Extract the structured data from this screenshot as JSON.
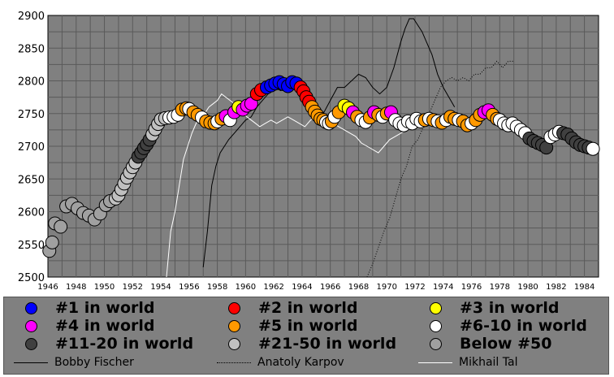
{
  "chart_data": {
    "type": "scatter",
    "title": "",
    "xlabel": "",
    "ylabel": "",
    "xlim": [
      1946,
      1985
    ],
    "ylim": [
      2500,
      2900
    ],
    "grid": true,
    "x_ticks": [
      "1946",
      "1948",
      "1950",
      "1952",
      "1954",
      "1956",
      "1958",
      "1960",
      "1962",
      "1964",
      "1966",
      "1968",
      "1970",
      "1972",
      "1974",
      "1976",
      "1978",
      "1980",
      "1982",
      "1984"
    ],
    "y_ticks": [
      "2500",
      "2550",
      "2600",
      "2650",
      "2700",
      "2750",
      "2800",
      "2850",
      "2900"
    ],
    "rank_categories": [
      {
        "label": "#1 in world",
        "color": "#0000ff"
      },
      {
        "label": "#2 in world",
        "color": "#ff0000"
      },
      {
        "label": "#3 in world",
        "color": "#ffff00"
      },
      {
        "label": "#4 in world",
        "color": "#ff00ff"
      },
      {
        "label": "#5 in world",
        "color": "#ff9900"
      },
      {
        "label": "#6-10 in world",
        "color": "#ffffff"
      },
      {
        "label": "#11-20 in world",
        "color": "#404040"
      },
      {
        "label": "#21-50 in world",
        "color": "#c0c0c0"
      },
      {
        "label": "Below #50",
        "color": "#a0a0a0"
      }
    ],
    "series": [
      {
        "name": "Bobby Fischer",
        "style": "solid",
        "color": "#000000",
        "x": [
          1957.0,
          1957.3,
          1957.6,
          1957.9,
          1958.2,
          1958.5,
          1958.8,
          1959.2,
          1959.6,
          1960.0,
          1960.4,
          1960.8,
          1961.2,
          1961.6,
          1962.0,
          1962.5,
          1963.0,
          1963.5,
          1964.0,
          1964.5,
          1965.0,
          1965.5,
          1966.0,
          1966.5,
          1967.0,
          1967.5,
          1968.0,
          1968.5,
          1969.0,
          1969.5,
          1970.0,
          1970.5,
          1971.0,
          1971.3,
          1971.6,
          1971.9,
          1972.2,
          1972.5,
          1972.8,
          1973.2,
          1973.6,
          1974.0,
          1974.4,
          1974.8
        ],
        "y": [
          2515,
          2570,
          2640,
          2670,
          2690,
          2700,
          2710,
          2720,
          2730,
          2740,
          2745,
          2760,
          2770,
          2780,
          2790,
          2785,
          2790,
          2795,
          2790,
          2770,
          2760,
          2750,
          2770,
          2790,
          2790,
          2800,
          2810,
          2805,
          2790,
          2780,
          2790,
          2820,
          2860,
          2880,
          2895,
          2895,
          2885,
          2875,
          2860,
          2840,
          2810,
          2790,
          2775,
          2760
        ]
      },
      {
        "name": "Anatoly Karpov",
        "style": "dotted",
        "color": "#000000",
        "x": [
          1968.6,
          1969.0,
          1969.4,
          1969.8,
          1970.2,
          1970.6,
          1971.0,
          1971.4,
          1971.8,
          1972.2,
          1972.6,
          1973.0,
          1973.4,
          1973.8,
          1974.2,
          1974.6,
          1975.0,
          1975.4,
          1975.8,
          1976.2,
          1976.6,
          1977.0,
          1977.4,
          1977.8,
          1978.2,
          1978.6,
          1979.0
        ],
        "y": [
          2500,
          2520,
          2545,
          2570,
          2590,
          2620,
          2650,
          2670,
          2700,
          2710,
          2730,
          2750,
          2770,
          2790,
          2800,
          2805,
          2800,
          2805,
          2800,
          2810,
          2810,
          2820,
          2820,
          2830,
          2820,
          2830,
          2830
        ]
      },
      {
        "name": "Mikhail Tal",
        "style": "solid",
        "color": "#ffffff",
        "x": [
          1954.4,
          1954.7,
          1955.0,
          1955.3,
          1955.6,
          1955.9,
          1956.2,
          1956.5,
          1956.8,
          1957.1,
          1957.4,
          1957.7,
          1958.0,
          1958.3,
          1958.6,
          1958.9,
          1959.2,
          1959.5,
          1959.8,
          1960.1,
          1960.4,
          1960.7,
          1961.0,
          1961.4,
          1961.8,
          1962.2,
          1962.6,
          1963.0,
          1963.4,
          1963.8,
          1964.2,
          1964.6,
          1965.0,
          1965.4,
          1965.8,
          1966.2,
          1966.6,
          1967.0,
          1967.4,
          1967.8,
          1968.2,
          1968.6,
          1969.0,
          1969.4,
          1969.8,
          1970.2,
          1970.6,
          1971.0,
          1971.4
        ],
        "y": [
          2500,
          2570,
          2600,
          2640,
          2680,
          2700,
          2720,
          2735,
          2745,
          2750,
          2760,
          2765,
          2770,
          2780,
          2775,
          2770,
          2765,
          2760,
          2750,
          2745,
          2740,
          2735,
          2730,
          2735,
          2740,
          2735,
          2740,
          2745,
          2740,
          2735,
          2730,
          2740,
          2745,
          2750,
          2740,
          2735,
          2730,
          2725,
          2720,
          2715,
          2705,
          2700,
          2695,
          2690,
          2700,
          2710,
          2715,
          2720,
          2725
        ]
      }
    ],
    "rating_points": [
      [
        1946.1,
        2540,
        "Below #50"
      ],
      [
        1946.3,
        2553,
        "Below #50"
      ],
      [
        1946.5,
        2582,
        "Below #50"
      ],
      [
        1946.9,
        2577,
        "Below #50"
      ],
      [
        1947.3,
        2608,
        "Below #50"
      ],
      [
        1947.7,
        2612,
        "Below #50"
      ],
      [
        1948.1,
        2605,
        "Below #50"
      ],
      [
        1948.5,
        2598,
        "Below #50"
      ],
      [
        1948.9,
        2594,
        "Below #50"
      ],
      [
        1949.3,
        2588,
        "Below #50"
      ],
      [
        1949.7,
        2597,
        "Below #50"
      ],
      [
        1950.1,
        2610,
        "Below #50"
      ],
      [
        1950.4,
        2616,
        "Below #50"
      ],
      [
        1950.8,
        2620,
        "#21-50 in world"
      ],
      [
        1951.0,
        2625,
        "#21-50 in world"
      ],
      [
        1951.2,
        2634,
        "#21-50 in world"
      ],
      [
        1951.4,
        2643,
        "#21-50 in world"
      ],
      [
        1951.6,
        2652,
        "#21-50 in world"
      ],
      [
        1951.8,
        2660,
        "#21-50 in world"
      ],
      [
        1952.0,
        2668,
        "#21-50 in world"
      ],
      [
        1952.2,
        2675,
        "#21-50 in world"
      ],
      [
        1952.4,
        2684,
        "#11-20 in world"
      ],
      [
        1952.6,
        2690,
        "#11-20 in world"
      ],
      [
        1952.8,
        2697,
        "#11-20 in world"
      ],
      [
        1953.0,
        2703,
        "#11-20 in world"
      ],
      [
        1953.2,
        2710,
        "#11-20 in world"
      ],
      [
        1953.4,
        2718,
        "#21-50 in world"
      ],
      [
        1953.6,
        2726,
        "#21-50 in world"
      ],
      [
        1953.8,
        2734,
        "#21-50 in world"
      ],
      [
        1954.0,
        2741,
        "#21-50 in world"
      ],
      [
        1954.3,
        2743,
        "#21-50 in world"
      ],
      [
        1954.6,
        2744,
        "#6-10 in world"
      ],
      [
        1954.9,
        2745,
        "#6-10 in world"
      ],
      [
        1955.2,
        2748,
        "#6-10 in world"
      ],
      [
        1955.5,
        2756,
        "#5 in world"
      ],
      [
        1955.8,
        2758,
        "#5 in world"
      ],
      [
        1956.0,
        2757,
        "#6-10 in world"
      ],
      [
        1956.3,
        2752,
        "#5 in world"
      ],
      [
        1956.6,
        2748,
        "#5 in world"
      ],
      [
        1956.9,
        2744,
        "#6-10 in world"
      ],
      [
        1957.2,
        2738,
        "#5 in world"
      ],
      [
        1957.5,
        2736,
        "#5 in world"
      ],
      [
        1957.8,
        2735,
        "#5 in world"
      ],
      [
        1958.0,
        2738,
        "#6-10 in world"
      ],
      [
        1958.3,
        2742,
        "#5 in world"
      ],
      [
        1958.6,
        2746,
        "#4 in world"
      ],
      [
        1958.9,
        2740,
        "#6-10 in world"
      ],
      [
        1959.2,
        2752,
        "#4 in world"
      ],
      [
        1959.5,
        2760,
        "#3 in world"
      ],
      [
        1959.8,
        2756,
        "#4 in world"
      ],
      [
        1960.1,
        2762,
        "#4 in world"
      ],
      [
        1960.4,
        2765,
        "#4 in world"
      ],
      [
        1960.8,
        2780,
        "#2 in world"
      ],
      [
        1961.1,
        2786,
        "#2 in world"
      ],
      [
        1961.5,
        2790,
        "#1 in world"
      ],
      [
        1961.8,
        2793,
        "#1 in world"
      ],
      [
        1962.1,
        2796,
        "#1 in world"
      ],
      [
        1962.4,
        2798,
        "#1 in world"
      ],
      [
        1962.7,
        2795,
        "#1 in world"
      ],
      [
        1963.0,
        2792,
        "#1 in world"
      ],
      [
        1963.3,
        2798,
        "#1 in world"
      ],
      [
        1963.6,
        2796,
        "#1 in world"
      ],
      [
        1963.9,
        2790,
        "#2 in world"
      ],
      [
        1964.1,
        2784,
        "#2 in world"
      ],
      [
        1964.3,
        2775,
        "#2 in world"
      ],
      [
        1964.5,
        2768,
        "#2 in world"
      ],
      [
        1964.7,
        2760,
        "#5 in world"
      ],
      [
        1964.9,
        2753,
        "#5 in world"
      ],
      [
        1965.1,
        2747,
        "#5 in world"
      ],
      [
        1965.3,
        2742,
        "#5 in world"
      ],
      [
        1965.5,
        2740,
        "#5 in world"
      ],
      [
        1965.7,
        2737,
        "#6-10 in world"
      ],
      [
        1965.9,
        2735,
        "#6-10 in world"
      ],
      [
        1966.1,
        2738,
        "#5 in world"
      ],
      [
        1966.3,
        2745,
        "#6-10 in world"
      ],
      [
        1966.6,
        2752,
        "#5 in world"
      ],
      [
        1967.0,
        2762,
        "#3 in world"
      ],
      [
        1967.3,
        2758,
        "#3 in world"
      ],
      [
        1967.6,
        2752,
        "#4 in world"
      ],
      [
        1967.9,
        2745,
        "#5 in world"
      ],
      [
        1968.2,
        2740,
        "#6-10 in world"
      ],
      [
        1968.5,
        2737,
        "#6-10 in world"
      ],
      [
        1968.8,
        2744,
        "#5 in world"
      ],
      [
        1969.1,
        2752,
        "#4 in world"
      ],
      [
        1969.4,
        2748,
        "#5 in world"
      ],
      [
        1969.7,
        2745,
        "#6-10 in world"
      ],
      [
        1970.0,
        2750,
        "#5 in world"
      ],
      [
        1970.3,
        2752,
        "#4 in world"
      ],
      [
        1970.6,
        2740,
        "#6-10 in world"
      ],
      [
        1970.9,
        2735,
        "#6-10 in world"
      ],
      [
        1971.2,
        2732,
        "#6-10 in world"
      ],
      [
        1971.5,
        2738,
        "#6-10 in world"
      ],
      [
        1971.8,
        2735,
        "#6-10 in world"
      ],
      [
        1972.1,
        2742,
        "#6-10 in world"
      ],
      [
        1972.4,
        2738,
        "#6-10 in world"
      ],
      [
        1972.7,
        2740,
        "#5 in world"
      ],
      [
        1973.0,
        2742,
        "#6-10 in world"
      ],
      [
        1973.3,
        2740,
        "#5 in world"
      ],
      [
        1973.6,
        2738,
        "#6-10 in world"
      ],
      [
        1973.9,
        2736,
        "#5 in world"
      ],
      [
        1974.2,
        2740,
        "#6-10 in world"
      ],
      [
        1974.5,
        2745,
        "#5 in world"
      ],
      [
        1974.8,
        2742,
        "#5 in world"
      ],
      [
        1975.1,
        2740,
        "#6-10 in world"
      ],
      [
        1975.4,
        2738,
        "#5 in world"
      ],
      [
        1975.7,
        2732,
        "#5 in world"
      ],
      [
        1976.0,
        2735,
        "#6-10 in world"
      ],
      [
        1976.3,
        2740,
        "#5 in world"
      ],
      [
        1976.6,
        2748,
        "#5 in world"
      ],
      [
        1976.9,
        2752,
        "#4 in world"
      ],
      [
        1977.2,
        2755,
        "#4 in world"
      ],
      [
        1977.5,
        2748,
        "#5 in world"
      ],
      [
        1977.8,
        2742,
        "#5 in world"
      ],
      [
        1978.0,
        2740,
        "#6-10 in world"
      ],
      [
        1978.3,
        2735,
        "#6-10 in world"
      ],
      [
        1978.6,
        2732,
        "#6-10 in world"
      ],
      [
        1978.9,
        2735,
        "#6-10 in world"
      ],
      [
        1979.2,
        2730,
        "#6-10 in world"
      ],
      [
        1979.5,
        2725,
        "#6-10 in world"
      ],
      [
        1979.8,
        2720,
        "#6-10 in world"
      ],
      [
        1980.1,
        2712,
        "#11-20 in world"
      ],
      [
        1980.4,
        2708,
        "#11-20 in world"
      ],
      [
        1980.7,
        2705,
        "#11-20 in world"
      ],
      [
        1981.0,
        2702,
        "#11-20 in world"
      ],
      [
        1981.3,
        2698,
        "#11-20 in world"
      ],
      [
        1981.6,
        2714,
        "#6-10 in world"
      ],
      [
        1981.9,
        2718,
        "#6-10 in world"
      ],
      [
        1982.2,
        2722,
        "#6-10 in world"
      ],
      [
        1982.5,
        2720,
        "#11-20 in world"
      ],
      [
        1982.8,
        2718,
        "#11-20 in world"
      ],
      [
        1983.1,
        2712,
        "#11-20 in world"
      ],
      [
        1983.4,
        2706,
        "#11-20 in world"
      ],
      [
        1983.7,
        2702,
        "#11-20 in world"
      ],
      [
        1984.0,
        2700,
        "#11-20 in world"
      ],
      [
        1984.3,
        2698,
        "#11-20 in world"
      ],
      [
        1984.6,
        2696,
        "#6-10 in world"
      ]
    ]
  },
  "legend": {
    "ranks": [
      {
        "label": "#1 in world",
        "color": "#0000ff"
      },
      {
        "label": "#2 in world",
        "color": "#ff0000"
      },
      {
        "label": "#3 in world",
        "color": "#ffff00"
      },
      {
        "label": "#4 in world",
        "color": "#ff00ff"
      },
      {
        "label": "#5 in world",
        "color": "#ff9900"
      },
      {
        "label": "#6-10 in world",
        "color": "#ffffff"
      },
      {
        "label": "#11-20 in world",
        "color": "#404040"
      },
      {
        "label": "#21-50 in world",
        "color": "#c0c0c0"
      },
      {
        "label": "Below #50",
        "color": "#a0a0a0"
      }
    ],
    "lines": [
      {
        "label": "Bobby Fischer",
        "style": "solid",
        "color": "#000000"
      },
      {
        "label": "Anatoly Karpov",
        "style": "dotted",
        "color": "#000000"
      },
      {
        "label": "Mikhail Tal",
        "style": "solid",
        "color": "#ffffff"
      }
    ]
  },
  "colors": {
    "plot_background": "#808080",
    "grid": "#5a5a5a",
    "page_background": "#ffffff"
  }
}
